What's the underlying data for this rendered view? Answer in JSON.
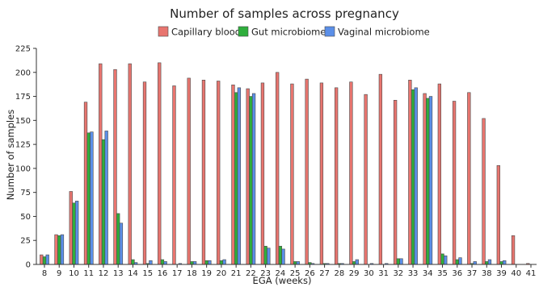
{
  "chart_data": {
    "type": "bar",
    "title": "Number of samples across pregnancy",
    "xlabel": "EGA (weeks)",
    "ylabel": "Number of samples",
    "ylim": [
      0,
      225
    ],
    "yticks": [
      0,
      25,
      50,
      75,
      100,
      125,
      150,
      175,
      200,
      225
    ],
    "grid": false,
    "legend_position": "top",
    "categories": [
      "8",
      "9",
      "10",
      "11",
      "12",
      "13",
      "14",
      "15",
      "16",
      "17",
      "18",
      "19",
      "20",
      "21",
      "22",
      "23",
      "24",
      "25",
      "26",
      "27",
      "28",
      "29",
      "30",
      "31",
      "32",
      "33",
      "34",
      "35",
      "36",
      "37",
      "38",
      "39",
      "40",
      "41"
    ],
    "series": [
      {
        "name": "Capillary blood",
        "color": "#E8756F",
        "values": [
          10,
          31,
          76,
          169,
          209,
          203,
          209,
          190,
          210,
          186,
          194,
          192,
          191,
          187,
          183,
          189,
          200,
          188,
          193,
          189,
          184,
          190,
          177,
          198,
          171,
          192,
          178,
          188,
          170,
          179,
          152,
          103,
          30,
          1
        ]
      },
      {
        "name": "Gut microbiome",
        "color": "#2FAE3C",
        "values": [
          8,
          30,
          64,
          137,
          130,
          53,
          5,
          1,
          5,
          0,
          3,
          4,
          4,
          179,
          175,
          19,
          19,
          3,
          2,
          1,
          1,
          3,
          0,
          0,
          6,
          182,
          173,
          11,
          5,
          1,
          3,
          3,
          0,
          0
        ]
      },
      {
        "name": "Vaginal microbiome",
        "color": "#5B8FE8",
        "values": [
          10,
          31,
          66,
          138,
          139,
          43,
          2,
          4,
          3,
          1,
          3,
          4,
          5,
          184,
          178,
          17,
          16,
          3,
          1,
          1,
          1,
          5,
          1,
          1,
          6,
          184,
          175,
          9,
          7,
          3,
          5,
          4,
          0,
          0
        ]
      }
    ]
  }
}
